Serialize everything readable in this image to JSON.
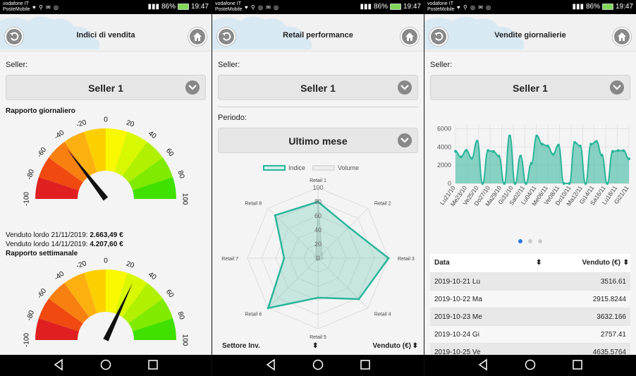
{
  "statusbar": {
    "carrier_line1": "vodafone IT",
    "carrier_line2": "PosteMobile",
    "battery": "86%",
    "time": "19:47"
  },
  "screen1": {
    "title": "Indici di vendita",
    "seller_label": "Seller:",
    "seller_value": "Seller 1",
    "daily_report_title": "Rapporto giornaliero",
    "gauge_ticks": [
      "-100",
      "-80",
      "-60",
      "-40",
      "-20",
      "0",
      "20",
      "40",
      "60",
      "80",
      "100"
    ],
    "gauge_colors": [
      "#e02020",
      "#f04a10",
      "#f88010",
      "#fcb010",
      "#fcd000",
      "#f8f800",
      "#d8f800",
      "#b0f000",
      "#80ea00",
      "#40e000"
    ],
    "daily_gauge_value": -42,
    "daily_line1_label": "Venduto lordo 21/11/2019: ",
    "daily_line1_value": "2.663,49 €",
    "daily_line2_label": "Venduto lordo 14/11/2019: ",
    "daily_line2_value": "4.207,60 €",
    "weekly_report_title": "Rapporto settimanale",
    "weekly_gauge_value": 28
  },
  "screen2": {
    "title": "Retail performance",
    "seller_label": "Seller:",
    "seller_value": "Seller 1",
    "period_label": "Periodo:",
    "period_value": "Ultimo mese",
    "legend_index": "Indice",
    "legend_volume": "Volume",
    "table_col1": "Settore Inv.",
    "table_col1_sort": "⬍",
    "table_col2": "Venduto (€)",
    "table_col2_sort": "⬍"
  },
  "screen3": {
    "title": "Vendite giornalierie",
    "seller_label": "Seller:",
    "seller_value": "Seller 1",
    "table_header_date": "Data",
    "table_header_sort": "⬍",
    "table_header_sold": "Venduto (€)",
    "table_header_sold_sort": "⬍",
    "rows": [
      {
        "date": "2019-10-21 Lu",
        "value": "3516.61"
      },
      {
        "date": "2019-10-22 Ma",
        "value": "2915.8244"
      },
      {
        "date": "2019-10-23 Me",
        "value": "3632.166"
      },
      {
        "date": "2019-10-24 Gi",
        "value": "2757.41"
      },
      {
        "date": "2019-10-25 Ve",
        "value": "4635.5764"
      }
    ]
  },
  "chart_data": [
    {
      "type": "radar",
      "categories": [
        "Retail 1",
        "Retail 2",
        "Retail 3",
        "Retail 4",
        "Retail 5",
        "Retail 6",
        "Retail 7",
        "Retail 8"
      ],
      "radial_ticks": [
        "0",
        "20",
        "40",
        "60",
        "80",
        "100"
      ],
      "rlim": [
        0,
        100
      ],
      "series": [
        {
          "name": "Indice",
          "values": [
            80,
            62,
            100,
            82,
            56,
            100,
            48,
            86
          ],
          "color": "#2bb59a"
        },
        {
          "name": "Volume",
          "values": [
            82,
            8,
            6,
            2,
            2,
            3,
            2,
            4
          ],
          "color": "#cccccc"
        }
      ]
    },
    {
      "type": "area",
      "x_ticks": [
        "Lu21/10",
        "Me23/10",
        "Ve25/10",
        "Do27/10",
        "Ma29/10",
        "Gi31/10",
        "Sa02/11",
        "Lu04/11",
        "Me06/11",
        "Ve08/11",
        "Do10/11",
        "Ma12/11",
        "Gi14/11",
        "Sa16/11",
        "Lu18/11",
        "Gi21/11"
      ],
      "y_ticks": [
        "0",
        "2000",
        "4000",
        "6000"
      ],
      "ylim": [
        0,
        6500
      ],
      "series": [
        {
          "values": [
            3516,
            2915,
            3632,
            2757,
            4635,
            0,
            3600,
            3500,
            3000,
            0,
            5200,
            0,
            3000,
            0,
            2200,
            5200,
            4300,
            4100,
            3200,
            4200,
            0,
            0,
            4500,
            4100,
            0,
            4300,
            4600,
            3100,
            0,
            3500,
            3600,
            3600,
            2700
          ],
          "color": "#2bb59a"
        }
      ],
      "grid": true
    }
  ]
}
